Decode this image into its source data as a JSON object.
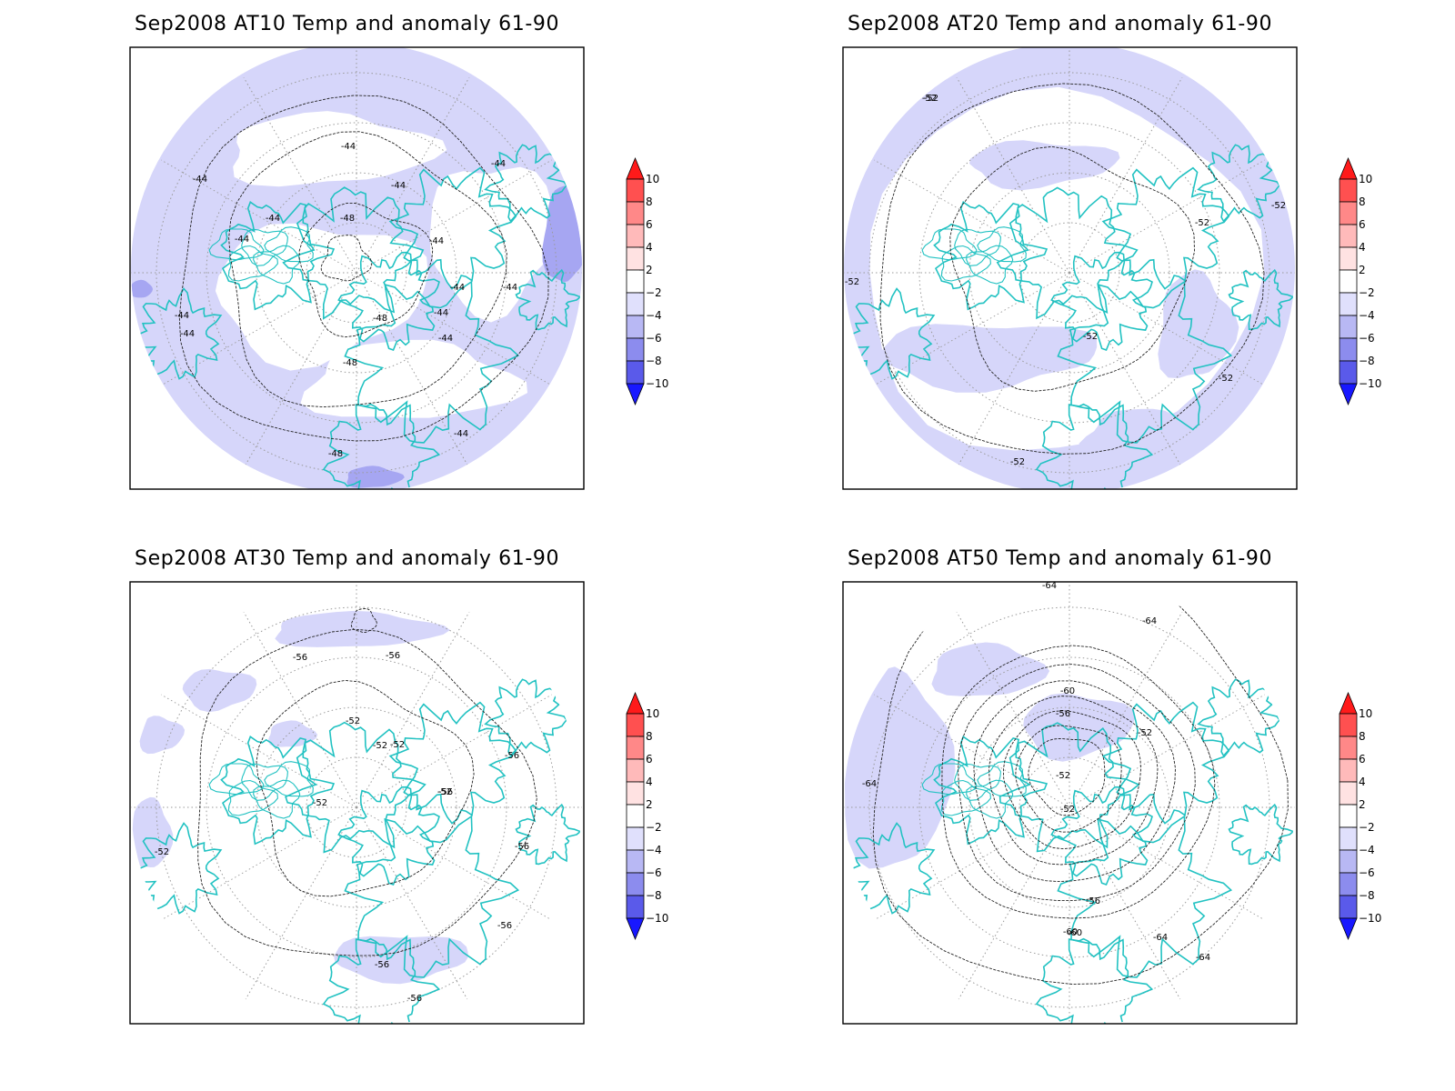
{
  "colors": {
    "coast": "#22c2c2",
    "frame": "#000000",
    "anomaly_light": "#d6d6fa",
    "anomaly_medium": "#a6a6f2",
    "anomaly_strong": "#7070ea"
  },
  "colorbar": {
    "levels": [
      "10",
      "8",
      "6",
      "4",
      "2",
      "−2",
      "−4",
      "−6",
      "−8",
      "−10"
    ],
    "colors": [
      "#ff1a1a",
      "#ff5050",
      "#ff8888",
      "#ffbaba",
      "#ffe2e2",
      "#ffffff",
      "#e0e0fc",
      "#b8b8f4",
      "#8c8cee",
      "#5a5aea",
      "#1818ff"
    ]
  },
  "panels": [
    {
      "title": "Sep2008 AT10 Temp and anomaly 61-90",
      "contour_labels": [
        "-44",
        "-44",
        "-44",
        "-44",
        "-44",
        "-48",
        "-44",
        "-44",
        "-48",
        "-44",
        "-44",
        "-44",
        "-48",
        "-44",
        "-44",
        "-44",
        "-44",
        "-48"
      ]
    },
    {
      "title": "Sep2008 AT20 Temp and anomaly 61-90",
      "contour_labels": [
        "-52",
        "-52",
        "-52",
        "-52",
        "-52",
        "-52",
        "-52",
        "-52"
      ]
    },
    {
      "title": "Sep2008 AT30 Temp and anomaly 61-90",
      "contour_labels": [
        "-56",
        "-56",
        "-52",
        "-52",
        "-52",
        "-52",
        "-52",
        "-56",
        "-52",
        "-56",
        "-56",
        "-56",
        "-56",
        "-56"
      ]
    },
    {
      "title": "Sep2008 AT50 Temp and anomaly 61-90",
      "contour_labels": [
        "-64",
        "-64",
        "-60",
        "-56",
        "-52",
        "-52",
        "-64",
        "-52",
        "-56",
        "-60",
        "-64",
        "-64",
        "-60"
      ]
    }
  ]
}
